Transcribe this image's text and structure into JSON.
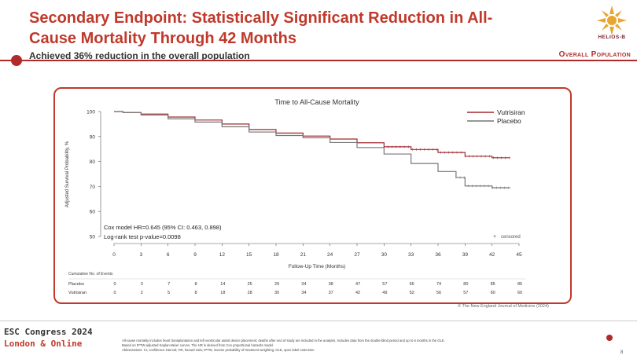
{
  "slide": {
    "title": "Secondary Endpoint: Statistically Significant Reduction in All-Cause Mortality Through 42 Months",
    "subtitle": "Achieved 36% reduction in the overall population",
    "badge": "Overall Population",
    "logo_text": "HELIOS-B",
    "nejm_credit": "© The New England Journal of Medicine (2024)",
    "congress_line1": "ESC Congress 2024",
    "congress_line2": "London & Online",
    "footnotes": [
      "All-cause mortality includes heart transplantation and left ventricular assist device placement; deaths after end of study are included in the analysis. Includes data from the double-blind period and up to 6 months in the OLE.",
      "Based on IPTW-adjusted Kaplan-Meier curves. The HR is derived from Cox proportional hazards model.",
      "Abbreviations: CI, confidence interval; HR, hazard ratio; IPTW, inverse probability of treatment weighting; OLE, open label extension."
    ],
    "page_number": "8",
    "colors": {
      "accent": "#c0392b",
      "vutrisiran": "#a0282f",
      "placebo": "#777777"
    }
  },
  "chart_data": {
    "type": "line",
    "title": "Time to All-Cause Mortality",
    "xlabel": "Follow-Up Time (Months)",
    "ylabel": "Adjusted Survival Probability, %",
    "xlim": [
      0,
      45
    ],
    "ylim": [
      50,
      100
    ],
    "x_ticks": [
      "0",
      "3",
      "6",
      "9",
      "12",
      "15",
      "18",
      "21",
      "24",
      "27",
      "30",
      "33",
      "36",
      "39",
      "42",
      "45"
    ],
    "y_ticks": [
      "50",
      "60",
      "70",
      "80",
      "90",
      "100"
    ],
    "legend_position": "top-right",
    "censored_label": "censored",
    "annotation": [
      "Cox model HR=0.645 (95% CI: 0.463, 0.898)",
      "Log-rank test p-value=0.0098"
    ],
    "series": [
      {
        "name": "Vutrisiran",
        "color": "#a0282f",
        "x": [
          0,
          1,
          3,
          6,
          9,
          12,
          15,
          18,
          21,
          24,
          27,
          30,
          33,
          36,
          39,
          42,
          44
        ],
        "y": [
          100,
          99.6,
          99.0,
          97.8,
          96.6,
          95.0,
          92.8,
          91.4,
          90.2,
          89.0,
          87.5,
          85.9,
          84.8,
          83.6,
          82.1,
          81.5,
          81.5
        ]
      },
      {
        "name": "Placebo",
        "color": "#777777",
        "x": [
          0,
          1,
          3,
          6,
          9,
          12,
          15,
          18,
          21,
          24,
          27,
          30,
          33,
          36,
          38,
          39,
          42,
          44
        ],
        "y": [
          100,
          99.6,
          98.6,
          97.1,
          95.8,
          93.9,
          91.8,
          90.4,
          89.5,
          87.6,
          85.6,
          83.0,
          79.2,
          76.0,
          73.6,
          70.2,
          69.5,
          69.5
        ]
      }
    ],
    "events_table": {
      "header": "Cumulative No. of Events",
      "rows": [
        {
          "label": "Placebo",
          "values": [
            "0",
            "3",
            "7",
            "8",
            "14",
            "25",
            "29",
            "34",
            "38",
            "47",
            "57",
            "66",
            "74",
            "80",
            "85",
            "85"
          ]
        },
        {
          "label": "Vutrisiran",
          "values": [
            "0",
            "2",
            "5",
            "8",
            "18",
            "28",
            "30",
            "34",
            "37",
            "42",
            "49",
            "52",
            "56",
            "57",
            "60",
            "60"
          ]
        }
      ]
    }
  }
}
